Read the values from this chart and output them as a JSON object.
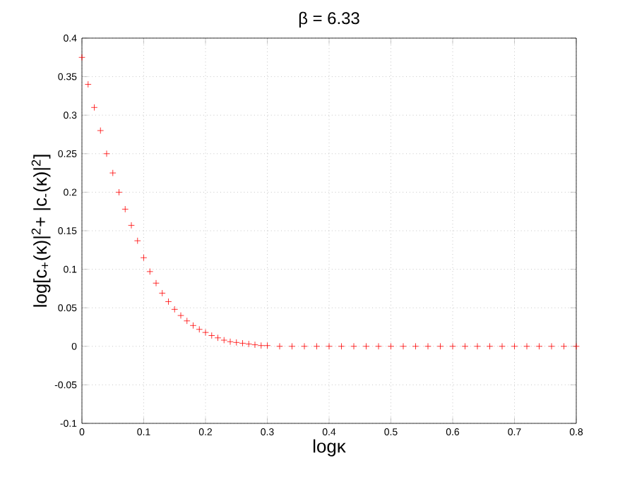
{
  "chart_data": {
    "type": "scatter",
    "title": "β = 6.33",
    "xlabel": "logκ",
    "ylabel": "log[c$_{+}$(κ)|$^{2}$+ |c$_{-}$(κ)|$^{2}$]",
    "x": [
      0,
      0.01,
      0.02,
      0.03,
      0.04,
      0.05,
      0.06,
      0.07,
      0.08,
      0.09,
      0.1,
      0.11,
      0.12,
      0.13,
      0.14,
      0.15,
      0.16,
      0.17,
      0.18,
      0.19,
      0.2,
      0.21,
      0.22,
      0.23,
      0.24,
      0.25,
      0.26,
      0.27,
      0.28,
      0.29,
      0.3,
      0.32,
      0.34,
      0.36,
      0.38,
      0.4,
      0.42,
      0.44,
      0.46,
      0.48,
      0.5,
      0.52,
      0.54,
      0.56,
      0.58,
      0.6,
      0.62,
      0.64,
      0.66,
      0.68,
      0.7,
      0.72,
      0.74,
      0.76,
      0.78,
      0.8
    ],
    "series": [
      {
        "color": "#ff0000",
        "values": [
          0.375,
          0.34,
          0.31,
          0.28,
          0.25,
          0.225,
          0.2,
          0.178,
          0.157,
          0.137,
          0.115,
          0.097,
          0.082,
          0.069,
          0.058,
          0.048,
          0.04,
          0.033,
          0.027,
          0.022,
          0.018,
          0.014,
          0.011,
          0.008,
          0.006,
          0.005,
          0.004,
          0.003,
          0.002,
          0.001,
          0.001,
          0,
          0,
          0,
          0,
          0,
          0,
          0,
          0,
          0,
          0,
          0,
          0,
          0,
          0,
          0,
          0,
          0,
          0,
          0,
          0,
          0,
          0,
          0,
          0,
          0
        ]
      }
    ],
    "xlim": [
      0,
      0.8
    ],
    "ylim": [
      -0.1,
      0.4
    ],
    "xticks": [
      0,
      0.1,
      0.2,
      0.3,
      0.4,
      0.5,
      0.6,
      0.7,
      0.8
    ],
    "yticks": [
      -0.1,
      -0.05,
      0,
      0.05,
      0.1,
      0.15,
      0.2,
      0.25,
      0.3,
      0.35,
      0.4
    ],
    "grid": true,
    "marker": "cross"
  }
}
